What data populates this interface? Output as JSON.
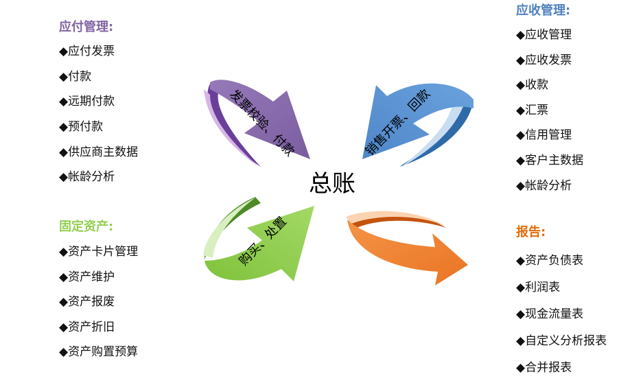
{
  "center": {
    "label": "总账"
  },
  "payable": {
    "title": "应付管理:",
    "items": [
      "◆应付发票",
      "◆付款",
      "◆远期付款",
      "◆预付款",
      "◆供应商主数据",
      "◆帐龄分析"
    ]
  },
  "receivable": {
    "title": "应收管理:",
    "items": [
      "◆应收管理",
      "◆应收发票",
      "◆收款",
      "◆汇票",
      "◆信用管理",
      "◆客户主数据",
      "◆帐龄分析"
    ]
  },
  "assets": {
    "title": "固定资产:",
    "items": [
      "◆资产卡片管理",
      "◆资产维护",
      "◆资产报废",
      "◆资产折旧",
      "◆资产购置预算"
    ]
  },
  "reports": {
    "title": "报告:",
    "items": [
      "◆资产负债表",
      "◆利润表",
      "◆现金流量表",
      "◆自定义分析报表",
      "◆合并报表"
    ]
  },
  "arrows": {
    "payable_flow": "发票校验、付款",
    "receivable_flow": "销售开票、回款",
    "assets_flow": "购买、处置"
  },
  "colors": {
    "payable": "#8064a2",
    "receivable": "#4f81bd",
    "assets": "#92d050",
    "reports": "#f07f2b"
  }
}
